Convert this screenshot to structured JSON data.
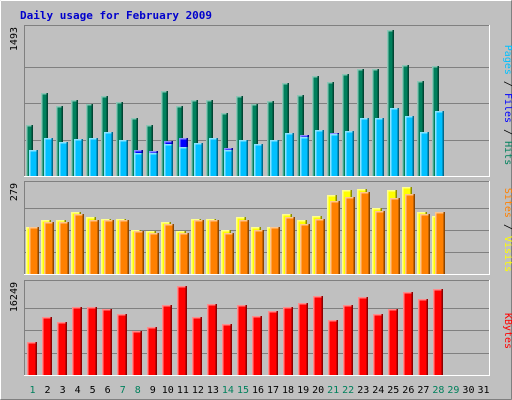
{
  "title": "Daily usage for February 2009",
  "colors": {
    "background": "#C0C0C0",
    "title": "#0000CC",
    "hits": "#00805C",
    "files": "#0000FF",
    "pages": "#00C0FF",
    "visits": "#FFFF00",
    "sites": "#FF8000",
    "kbytes": "#FF0000",
    "weekday_label": "#000000",
    "weekend_label": "#00805C",
    "slash": "#000000"
  },
  "side_labels": {
    "top": [
      "Pages",
      "/",
      "Files",
      "/",
      "Hits"
    ],
    "middle": [
      "Sites",
      "/",
      "Visits"
    ],
    "bottom": [
      "KBytes"
    ]
  },
  "chart_data": [
    {
      "type": "bar",
      "panel": "hits-files-pages",
      "ymax_label": "1493",
      "ylim": [
        0,
        1493
      ],
      "x": [
        "1",
        "2",
        "3",
        "4",
        "5",
        "6",
        "7",
        "8",
        "9",
        "10",
        "11",
        "12",
        "13",
        "14",
        "15",
        "16",
        "17",
        "18",
        "19",
        "20",
        "21",
        "22",
        "23",
        "24",
        "25",
        "26",
        "27",
        "28",
        "29",
        "30",
        "31"
      ],
      "weekend_days": [
        "1",
        "7",
        "8",
        "14",
        "15",
        "21",
        "22",
        "28",
        "29"
      ],
      "series": [
        {
          "name": "Hits",
          "values": [
            520,
            850,
            720,
            780,
            740,
            820,
            760,
            590,
            520,
            870,
            720,
            780,
            780,
            640,
            820,
            740,
            770,
            950,
            830,
            1020,
            960,
            1040,
            1090,
            1090,
            1493,
            1140,
            970,
            1120,
            null,
            null,
            null
          ]
        },
        {
          "name": "Files",
          "values": [
            270,
            390,
            350,
            380,
            390,
            430,
            370,
            270,
            260,
            360,
            390,
            340,
            380,
            290,
            370,
            330,
            370,
            440,
            420,
            470,
            440,
            460,
            590,
            590,
            700,
            610,
            450,
            660,
            null,
            null,
            null
          ]
        },
        {
          "name": "Pages",
          "values": [
            270,
            390,
            350,
            380,
            390,
            450,
            370,
            240,
            240,
            330,
            300,
            340,
            390,
            270,
            370,
            330,
            370,
            440,
            400,
            470,
            430,
            460,
            590,
            590,
            700,
            610,
            450,
            660,
            null,
            null,
            null
          ]
        }
      ]
    },
    {
      "type": "bar",
      "panel": "visits-sites",
      "ymax_label": "279",
      "ylim": [
        0,
        279
      ],
      "x": [
        "1",
        "2",
        "3",
        "4",
        "5",
        "6",
        "7",
        "8",
        "9",
        "10",
        "11",
        "12",
        "13",
        "14",
        "15",
        "16",
        "17",
        "18",
        "19",
        "20",
        "21",
        "22",
        "23",
        "24",
        "25",
        "26",
        "27",
        "28",
        "29",
        "30",
        "31"
      ],
      "series": [
        {
          "name": "Visits",
          "values": [
            150,
            170,
            170,
            195,
            180,
            175,
            175,
            140,
            135,
            165,
            135,
            175,
            175,
            140,
            180,
            150,
            150,
            190,
            170,
            185,
            250,
            265,
            270,
            210,
            265,
            275,
            195,
            185,
            null,
            null,
            null
          ]
        },
        {
          "name": "Sites",
          "values": [
            150,
            165,
            165,
            190,
            170,
            170,
            170,
            135,
            130,
            160,
            130,
            170,
            170,
            130,
            170,
            140,
            150,
            180,
            160,
            175,
            230,
            245,
            260,
            200,
            240,
            255,
            190,
            195,
            null,
            null,
            null
          ]
        }
      ]
    },
    {
      "type": "bar",
      "panel": "kbytes",
      "ymax_label": "16249",
      "ylim": [
        0,
        16249
      ],
      "x": [
        "1",
        "2",
        "3",
        "4",
        "5",
        "6",
        "7",
        "8",
        "9",
        "10",
        "11",
        "12",
        "13",
        "14",
        "15",
        "16",
        "17",
        "18",
        "19",
        "20",
        "21",
        "22",
        "23",
        "24",
        "25",
        "26",
        "27",
        "28",
        "29",
        "30",
        "31"
      ],
      "series": [
        {
          "name": "KBytes",
          "values": [
            5900,
            10500,
            9600,
            12300,
            12200,
            12000,
            11000,
            7900,
            8600,
            12700,
            16000,
            10400,
            12900,
            9200,
            12600,
            10600,
            11500,
            12300,
            13000,
            14200,
            9900,
            12600,
            14000,
            11000,
            11900,
            15000,
            13800,
            15600,
            null,
            null,
            null
          ]
        }
      ]
    }
  ]
}
